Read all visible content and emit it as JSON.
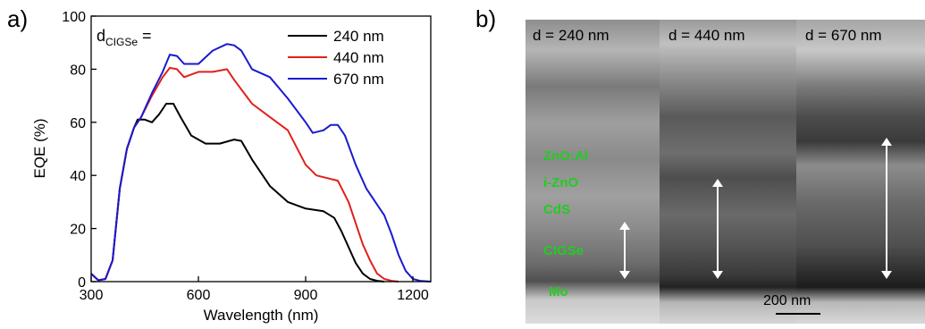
{
  "panel_a_label": "a)",
  "panel_b_label": "b)",
  "chart_data": {
    "type": "line",
    "xlabel": "Wavelength (nm)",
    "ylabel": "EQE (%)",
    "xlim": [
      300,
      1250
    ],
    "ylim": [
      0,
      100
    ],
    "xticks": [
      300,
      600,
      900,
      1200
    ],
    "yticks": [
      0,
      20,
      40,
      60,
      80,
      100
    ],
    "legend_title_main": "d",
    "legend_title_sub": "CIGSe",
    "legend_title_suffix": " =",
    "legend_position": "top-right",
    "grid": false,
    "series": [
      {
        "name": "240 nm",
        "color": "#000000",
        "x": [
          300,
          320,
          340,
          360,
          380,
          400,
          420,
          430,
          450,
          470,
          490,
          510,
          530,
          550,
          580,
          620,
          660,
          700,
          720,
          750,
          800,
          850,
          900,
          950,
          980,
          1000,
          1020,
          1040,
          1060,
          1080,
          1100,
          1120
        ],
        "y": [
          3,
          0.5,
          1,
          8,
          35,
          50,
          58,
          61,
          61,
          60,
          63,
          67,
          67,
          62,
          55,
          52,
          52,
          53.5,
          53,
          46,
          36,
          30,
          27.5,
          26.5,
          24,
          19,
          13,
          7,
          3,
          1,
          0.3,
          0
        ]
      },
      {
        "name": "440 nm",
        "color": "#e0201a",
        "x": [
          300,
          320,
          340,
          360,
          380,
          400,
          420,
          440,
          470,
          500,
          520,
          540,
          560,
          600,
          640,
          680,
          700,
          750,
          800,
          850,
          900,
          930,
          960,
          990,
          1020,
          1040,
          1060,
          1080,
          1100,
          1120,
          1140,
          1160
        ],
        "y": [
          3,
          0.5,
          1,
          8,
          35,
          50,
          58,
          62,
          70,
          77,
          80.5,
          80,
          77,
          79,
          79,
          80,
          76,
          67,
          62,
          57,
          44,
          40,
          39,
          38,
          30,
          22,
          14,
          8,
          3,
          1,
          0.3,
          0
        ]
      },
      {
        "name": "670 nm",
        "color": "#1a1ad0",
        "x": [
          300,
          320,
          340,
          360,
          380,
          400,
          420,
          440,
          470,
          500,
          520,
          540,
          560,
          600,
          640,
          680,
          700,
          720,
          750,
          800,
          850,
          900,
          920,
          950,
          970,
          990,
          1010,
          1040,
          1070,
          1100,
          1120,
          1140,
          1160,
          1180,
          1200,
          1220,
          1250
        ],
        "y": [
          3,
          0.5,
          1,
          8,
          35,
          50,
          58,
          62,
          71,
          79,
          85.5,
          85,
          82,
          82,
          87,
          89.5,
          89,
          87,
          80,
          77,
          69,
          60,
          56,
          57,
          59,
          59,
          55,
          44,
          35,
          29,
          25,
          18,
          10,
          4,
          1,
          0.3,
          0
        ]
      }
    ]
  },
  "sem": {
    "panels": [
      {
        "label": "d = 240 nm"
      },
      {
        "label": "d = 440 nm"
      },
      {
        "label": "d = 670 nm"
      }
    ],
    "layers": [
      "ZnO:Al",
      "i-ZnO",
      "CdS",
      "CIGSe",
      "Mo"
    ],
    "scale_bar": "200 nm"
  }
}
